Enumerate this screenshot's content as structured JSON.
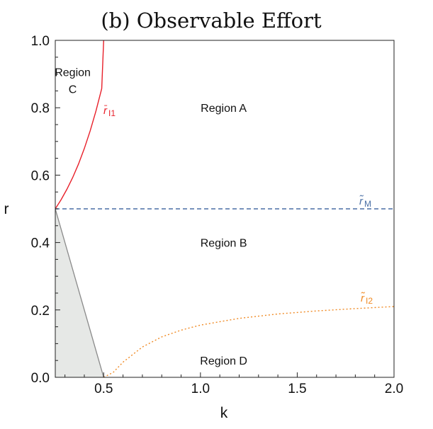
{
  "chart_data": {
    "type": "line",
    "title": "(b) Observable Effort",
    "xlabel": "k",
    "ylabel": "r",
    "xlim": [
      0.25,
      2.0
    ],
    "ylim": [
      0.0,
      1.0
    ],
    "xticks": [
      "0.5",
      "1.0",
      "1.5",
      "2.0"
    ],
    "yticks": [
      "0.0",
      "0.2",
      "0.4",
      "0.6",
      "0.8",
      "1.0"
    ],
    "grid": false,
    "regions": [
      {
        "label": "Region A",
        "x": 1.12,
        "y": 0.8
      },
      {
        "label": "Region B",
        "x": 1.12,
        "y": 0.4
      },
      {
        "label": "Region C",
        "x": 0.34,
        "y": 0.85
      },
      {
        "label": "Region D",
        "x": 1.12,
        "y": 0.05
      }
    ],
    "series": [
      {
        "label": "r̄",
        "label_sub": "I1",
        "color": "#e8202a",
        "style": "solid",
        "x": [
          0.25,
          0.28,
          0.31,
          0.34,
          0.37,
          0.4,
          0.43,
          0.46,
          0.49,
          0.5
        ],
        "y": [
          0.5,
          0.527,
          0.558,
          0.593,
          0.633,
          0.679,
          0.731,
          0.79,
          0.857,
          1.0
        ]
      },
      {
        "label": "r̃",
        "label_sub": "M",
        "color": "#4a6fa5",
        "style": "dashed",
        "x": [
          0.25,
          2.0
        ],
        "y": [
          0.5,
          0.5
        ]
      },
      {
        "label": "r̃",
        "label_sub": "I2",
        "color": "#f08a24",
        "style": "dotted",
        "x": [
          0.5,
          0.55,
          0.6,
          0.7,
          0.8,
          0.9,
          1.0,
          1.2,
          1.4,
          1.6,
          1.8,
          2.0
        ],
        "y": [
          0.0,
          0.015,
          0.045,
          0.09,
          0.12,
          0.14,
          0.155,
          0.175,
          0.188,
          0.197,
          0.204,
          0.21
        ]
      }
    ],
    "shaded_region": {
      "color": "#e6e8e6",
      "edge_color": "#8a8a8a",
      "points": [
        [
          0.25,
          0.5
        ],
        [
          0.5,
          0.0
        ],
        [
          0.25,
          0.0
        ]
      ]
    }
  }
}
